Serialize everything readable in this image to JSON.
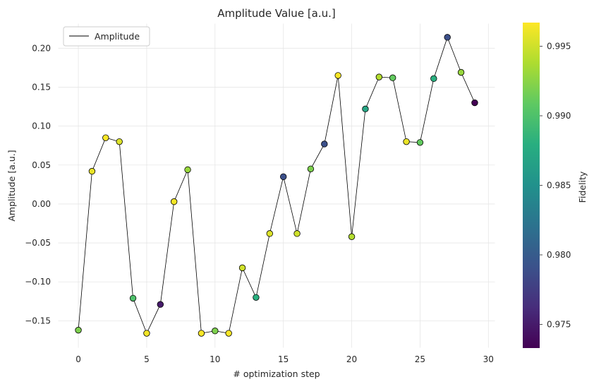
{
  "chart_data": {
    "type": "scatter",
    "title": "Amplitude Value [a.u.]",
    "xlabel": "# optimization step",
    "ylabel": "Amplitude [a.u.]",
    "xlim": [
      -1.5,
      30.5
    ],
    "ylim": [
      -0.185,
      0.232
    ],
    "xticks": [
      0,
      5,
      10,
      15,
      20,
      25,
      30
    ],
    "yticks": [
      -0.15,
      -0.1,
      -0.05,
      0.0,
      0.05,
      0.1,
      0.15,
      0.2
    ],
    "ytick_labels": [
      "−0.15",
      "−0.10",
      "−0.05",
      "0.00",
      "0.05",
      "0.10",
      "0.15",
      "0.20"
    ],
    "grid": true,
    "legend": {
      "position": "top-left",
      "entries": [
        "Amplitude"
      ]
    },
    "line_color": "#000000",
    "series": [
      {
        "name": "Amplitude",
        "x": [
          0,
          1,
          2,
          3,
          4,
          5,
          6,
          7,
          8,
          9,
          10,
          11,
          12,
          13,
          14,
          15,
          16,
          17,
          18,
          19,
          20,
          21,
          22,
          23,
          24,
          25,
          26,
          27,
          28,
          29
        ],
        "y": [
          -0.162,
          0.042,
          0.085,
          0.08,
          -0.121,
          -0.166,
          -0.129,
          0.003,
          0.044,
          -0.166,
          -0.163,
          -0.166,
          -0.082,
          -0.12,
          -0.038,
          0.035,
          -0.038,
          0.045,
          0.077,
          0.165,
          -0.042,
          0.122,
          0.163,
          0.162,
          0.08,
          0.079,
          0.161,
          0.214,
          0.169,
          0.13
        ],
        "fidelity": [
          0.992,
          0.996,
          0.9965,
          0.9955,
          0.99,
          0.9963,
          0.975,
          0.9963,
          0.993,
          0.9965,
          0.992,
          0.9965,
          0.995,
          0.988,
          0.9955,
          0.979,
          0.995,
          0.992,
          0.979,
          0.9965,
          0.994,
          0.987,
          0.994,
          0.991,
          0.996,
          0.991,
          0.988,
          0.979,
          0.993,
          0.9733
        ]
      }
    ],
    "colorbar": {
      "label": "Fidelity",
      "colormap": "viridis",
      "range": [
        0.9733,
        0.9967
      ],
      "ticks": [
        0.975,
        0.98,
        0.985,
        0.99,
        0.995
      ],
      "tick_labels": [
        "0.975",
        "0.980",
        "0.985",
        "0.990",
        "0.995"
      ]
    }
  }
}
